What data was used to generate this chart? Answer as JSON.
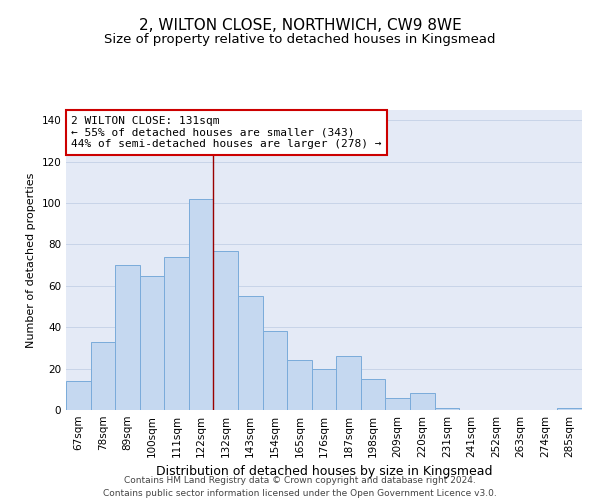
{
  "title": "2, WILTON CLOSE, NORTHWICH, CW9 8WE",
  "subtitle": "Size of property relative to detached houses in Kingsmead",
  "xlabel": "Distribution of detached houses by size in Kingsmead",
  "ylabel": "Number of detached properties",
  "categories": [
    "67sqm",
    "78sqm",
    "89sqm",
    "100sqm",
    "111sqm",
    "122sqm",
    "132sqm",
    "143sqm",
    "154sqm",
    "165sqm",
    "176sqm",
    "187sqm",
    "198sqm",
    "209sqm",
    "220sqm",
    "231sqm",
    "241sqm",
    "252sqm",
    "263sqm",
    "274sqm",
    "285sqm"
  ],
  "values": [
    14,
    33,
    70,
    65,
    74,
    102,
    77,
    55,
    38,
    24,
    20,
    26,
    15,
    6,
    8,
    1,
    0,
    0,
    0,
    0,
    1
  ],
  "bar_color": "#c5d8f0",
  "bar_edge_color": "#7aabda",
  "vline_x": 5.5,
  "vline_color": "#990000",
  "annotation_text": "2 WILTON CLOSE: 131sqm\n← 55% of detached houses are smaller (343)\n44% of semi-detached houses are larger (278) →",
  "annotation_box_facecolor": "#ffffff",
  "annotation_box_edgecolor": "#cc0000",
  "ylim": [
    0,
    145
  ],
  "yticks": [
    0,
    20,
    40,
    60,
    80,
    100,
    120,
    140
  ],
  "grid_color": "#c8d4e8",
  "bg_color": "#e4eaf6",
  "footer_line1": "Contains HM Land Registry data © Crown copyright and database right 2024.",
  "footer_line2": "Contains public sector information licensed under the Open Government Licence v3.0.",
  "title_fontsize": 11,
  "subtitle_fontsize": 9.5,
  "xlabel_fontsize": 9,
  "ylabel_fontsize": 8,
  "tick_fontsize": 7.5,
  "annotation_fontsize": 8,
  "footer_fontsize": 6.5
}
